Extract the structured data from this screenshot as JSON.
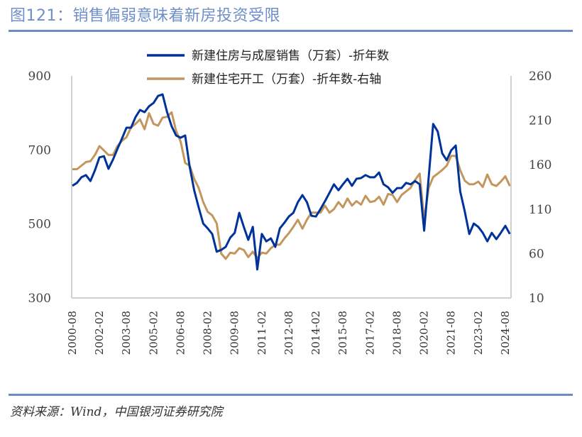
{
  "header": {
    "title": "图121：销售偏弱意味着新房投资受限"
  },
  "footer": {
    "source": "资料来源：Wind，中国银河证券研究院"
  },
  "chart_data": {
    "type": "line",
    "title": "",
    "x_start": "2000-08",
    "x_step_months": 3,
    "x_tick_labels": [
      "2000-08",
      "2002-02",
      "2003-08",
      "2005-02",
      "2006-08",
      "2008-02",
      "2009-08",
      "2011-02",
      "2012-08",
      "2014-02",
      "2015-08",
      "2017-02",
      "2018-08",
      "2020-02",
      "2021-08",
      "2023-02",
      "2024-08"
    ],
    "y_left": {
      "range": [
        300,
        900
      ],
      "ticks": [
        "900",
        "700",
        "500",
        "300"
      ]
    },
    "y_right": {
      "range": [
        10,
        260
      ],
      "ticks": [
        "260",
        "210",
        "160",
        "110",
        "60",
        "10"
      ]
    },
    "grid": false,
    "legend_position": "top-center",
    "series": [
      {
        "name": "新建住房与成屋销售（万套）-折年数",
        "axis": "left",
        "color": "#003399",
        "values": [
          603,
          611,
          626,
          632,
          616,
          645,
          680,
          683,
          649,
          674,
          703,
          731,
          760,
          760,
          789,
          808,
          802,
          818,
          827,
          846,
          850,
          802,
          764,
          739,
          733,
          739,
          655,
          591,
          545,
          501,
          488,
          473,
          425,
          430,
          438,
          463,
          476,
          530,
          492,
          457,
          492,
          377,
          473,
          453,
          461,
          438,
          488,
          503,
          520,
          530,
          559,
          578,
          559,
          522,
          520,
          540,
          561,
          584,
          607,
          591,
          607,
          622,
          603,
          622,
          624,
          632,
          626,
          626,
          639,
          607,
          599,
          584,
          597,
          597,
          611,
          607,
          616,
          607,
          482,
          626,
          770,
          750,
          691,
          672,
          699,
          712,
          588,
          534,
          473,
          501,
          492,
          476,
          453,
          476,
          459,
          476,
          495,
          473
        ]
      },
      {
        "name": "新建住宅开工（万套）-折年数-右轴",
        "axis": "right",
        "color": "#c4965e",
        "values": [
          155,
          155,
          159,
          163,
          164,
          171,
          181,
          176,
          171,
          171,
          181,
          187,
          191,
          202,
          206,
          211,
          200,
          218,
          206,
          204,
          213,
          214,
          219,
          198,
          186,
          162,
          159,
          144,
          134,
          118,
          107,
          103,
          94,
          60,
          54,
          61,
          60,
          66,
          64,
          56,
          62,
          55,
          61,
          60,
          66,
          70,
          70,
          77,
          83,
          90,
          98,
          88,
          98,
          106,
          106,
          106,
          114,
          106,
          110,
          118,
          112,
          122,
          114,
          119,
          115,
          125,
          118,
          119,
          124,
          115,
          127,
          126,
          118,
          126,
          130,
          134,
          143,
          150,
          98,
          134,
          146,
          150,
          154,
          159,
          170,
          170,
          154,
          142,
          138,
          138,
          141,
          135,
          149,
          138,
          136,
          141,
          147,
          136
        ]
      }
    ]
  }
}
